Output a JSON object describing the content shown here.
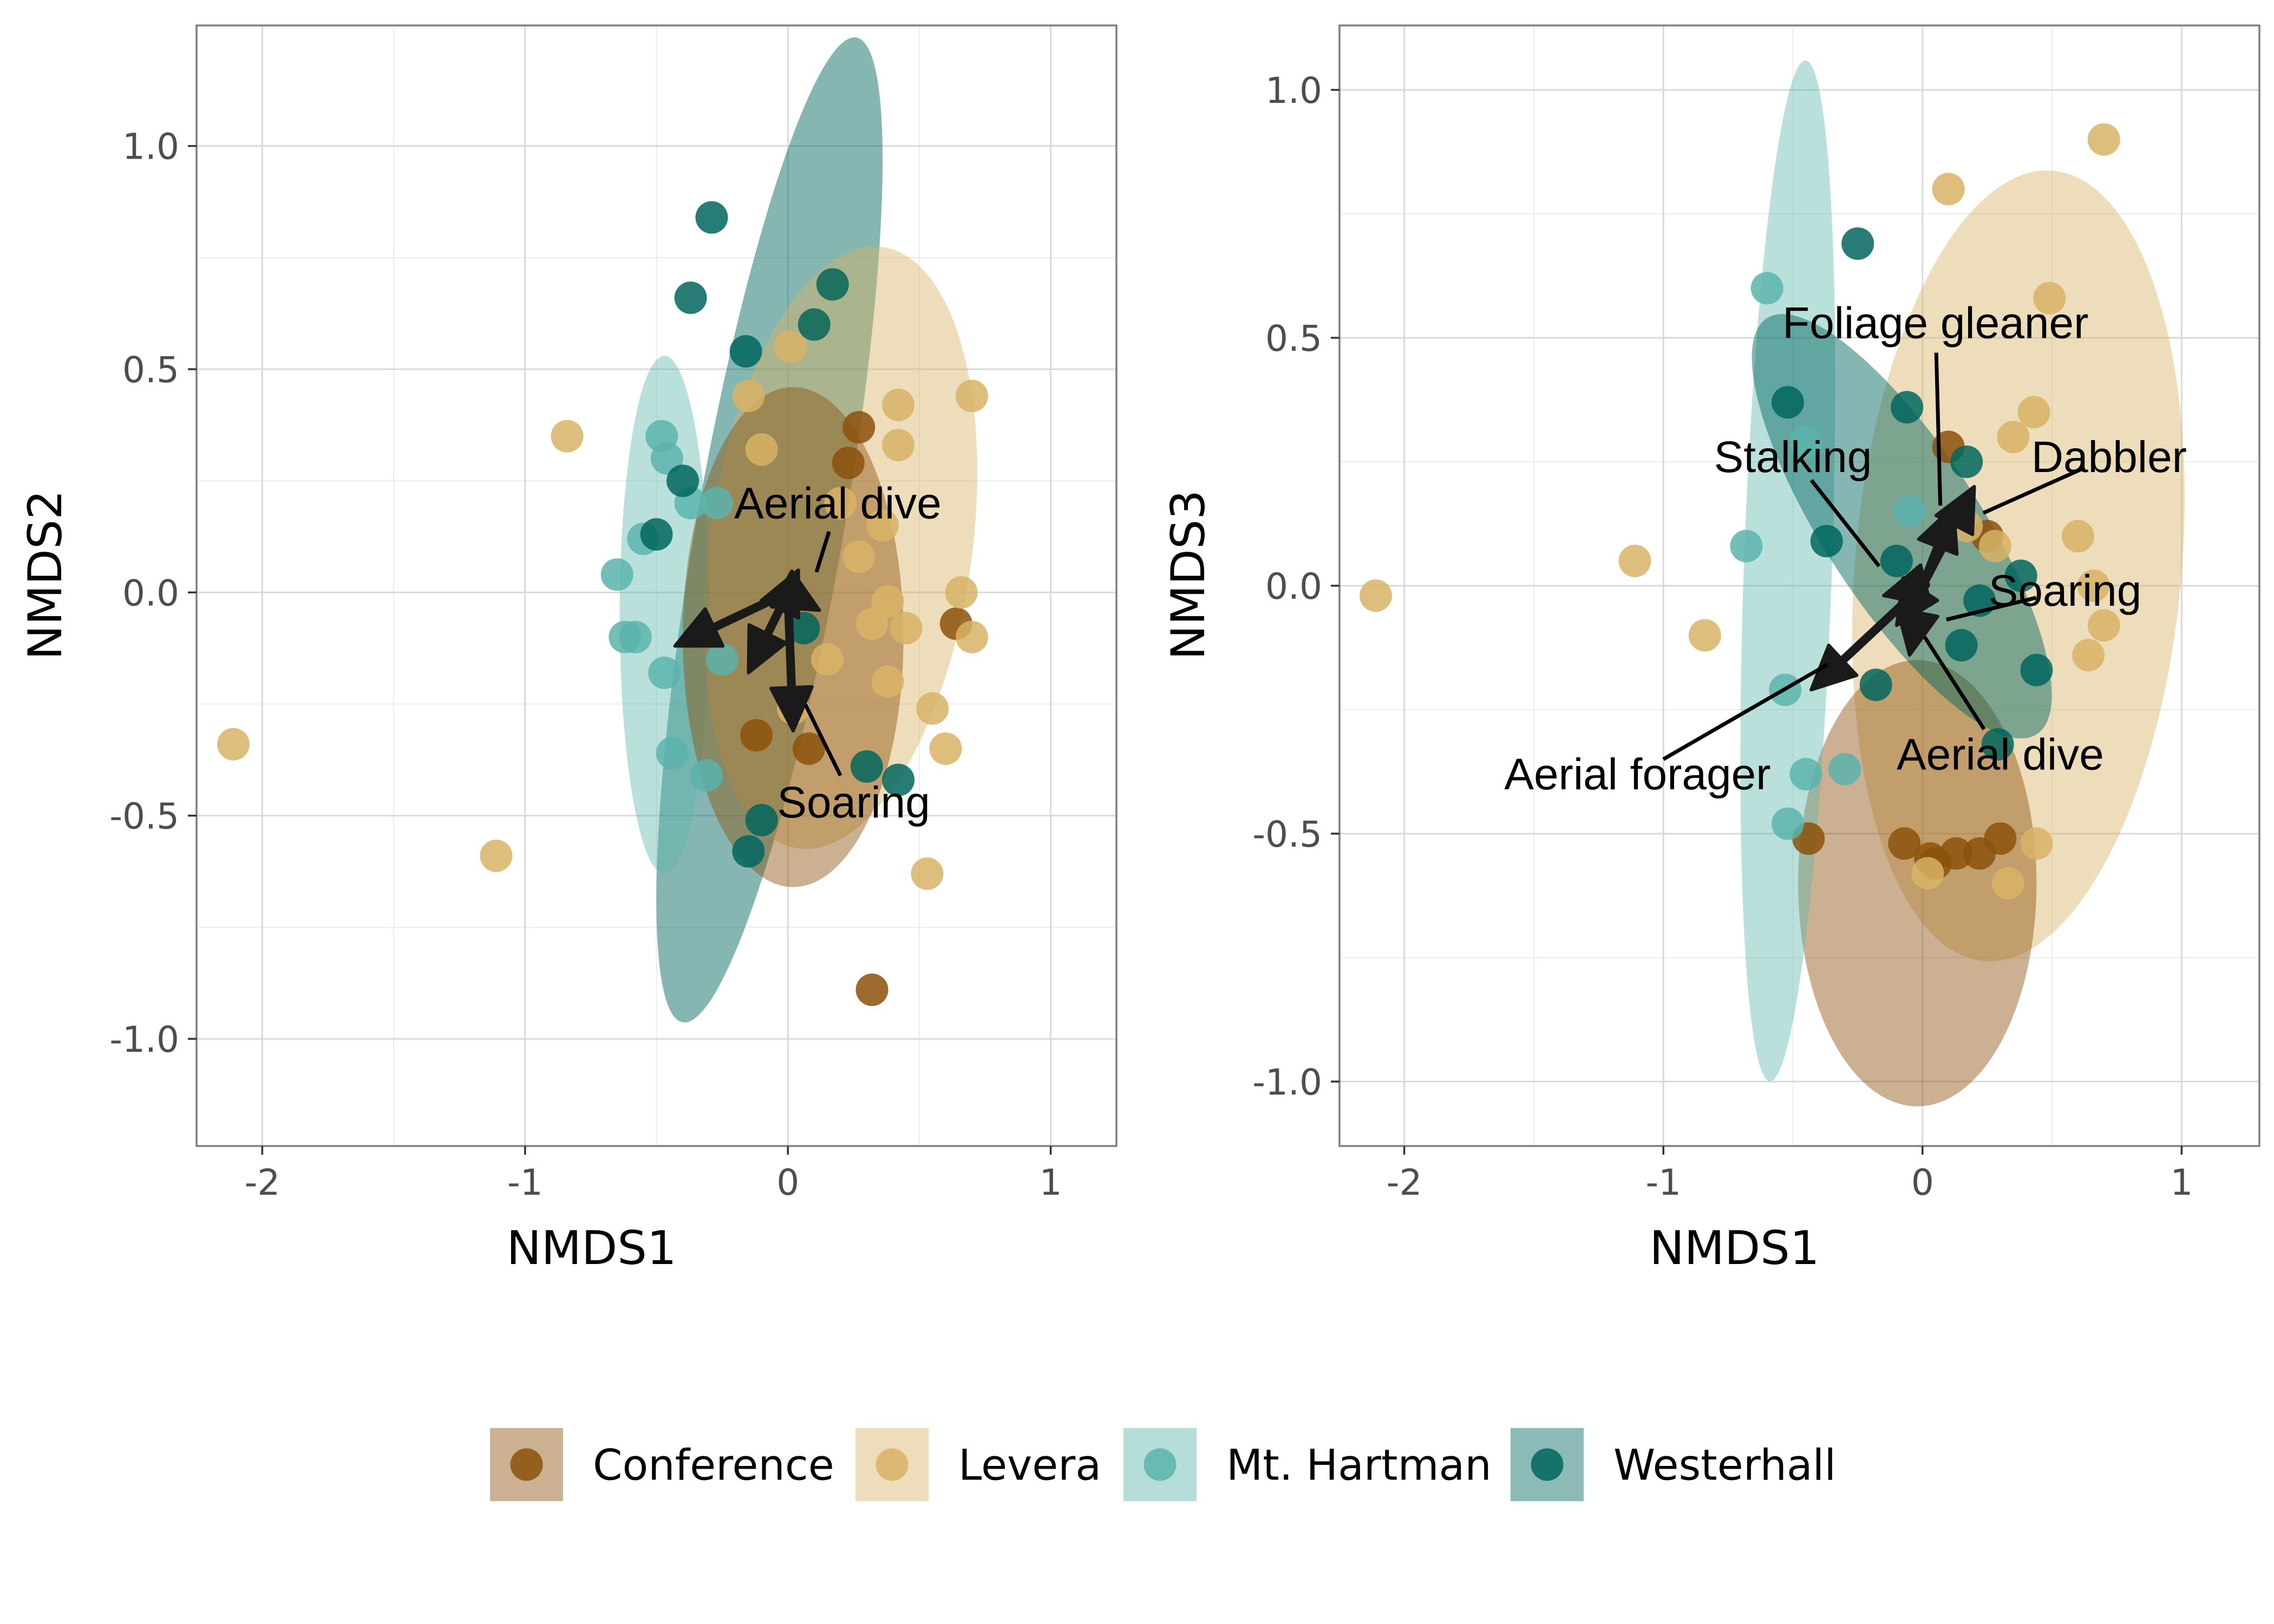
{
  "colors": {
    "Conference": "#8C510A",
    "Levera": "#D8B365",
    "Mt. Hartman": "#5AB4AC",
    "Westerhall": "#01665E",
    "arrow": "#1a1a1a",
    "grid": "#d9d9d9",
    "panel_border": "#7f7f7f"
  },
  "legend": {
    "items": [
      {
        "label": "Conference",
        "color": "#8C510A"
      },
      {
        "label": "Levera",
        "color": "#D8B365"
      },
      {
        "label": "Mt. Hartman",
        "color": "#5AB4AC"
      },
      {
        "label": "Westerhall",
        "color": "#01665E"
      }
    ],
    "placement": "bottom"
  },
  "chart_data": [
    {
      "type": "scatter",
      "xlabel": "NMDS1",
      "ylabel": "NMDS2",
      "xlim": [
        -2.25,
        1.25
      ],
      "ylim": [
        -1.24,
        1.27
      ],
      "xticks": [
        -2,
        -1,
        0,
        1
      ],
      "xtick_labels": [
        "-2",
        "-1",
        "0",
        "1"
      ],
      "yticks": [
        1.0,
        0.5,
        0.0,
        -0.5,
        -1.0
      ],
      "ytick_labels": [
        "1.0",
        "0.5",
        "0.0",
        "-0.5",
        "-1.0"
      ],
      "grid": true,
      "ellipses": [
        {
          "group": "Westerhall",
          "cx": -0.07,
          "cy": 0.14,
          "rx": 0.28,
          "ry": 1.12,
          "angle_deg": 10
        },
        {
          "group": "Levera",
          "cx": 0.2,
          "cy": 0.1,
          "rx": 0.5,
          "ry": 0.68,
          "angle_deg": 8
        },
        {
          "group": "Mt. Hartman",
          "cx": -0.47,
          "cy": -0.05,
          "rx": 0.17,
          "ry": 0.58,
          "angle_deg": 0
        },
        {
          "group": "Conference",
          "cx": 0.02,
          "cy": -0.1,
          "rx": 0.42,
          "ry": 0.56,
          "angle_deg": 0
        }
      ],
      "series": [
        {
          "name": "Conference",
          "points": [
            [
              0.32,
              -0.89
            ],
            [
              0.64,
              -0.07
            ],
            [
              0.27,
              0.37
            ],
            [
              0.08,
              -0.35
            ],
            [
              -0.12,
              -0.32
            ],
            [
              0.23,
              0.29
            ]
          ]
        },
        {
          "name": "Levera",
          "points": [
            [
              -2.11,
              -0.34
            ],
            [
              -1.11,
              -0.59
            ],
            [
              -0.84,
              0.35
            ],
            [
              0.17,
              0.69
            ],
            [
              0.1,
              0.6
            ],
            [
              0.01,
              0.55
            ],
            [
              0.42,
              0.42
            ],
            [
              0.7,
              0.44
            ],
            [
              0.42,
              0.33
            ],
            [
              0.66,
              0.0
            ],
            [
              0.7,
              -0.1
            ],
            [
              0.55,
              -0.26
            ],
            [
              0.6,
              -0.35
            ],
            [
              0.53,
              -0.63
            ],
            [
              0.38,
              -0.2
            ],
            [
              0.45,
              -0.08
            ],
            [
              0.38,
              -0.02
            ],
            [
              0.27,
              0.08
            ],
            [
              0.36,
              0.15
            ],
            [
              0.2,
              0.2
            ],
            [
              0.15,
              -0.15
            ],
            [
              0.32,
              -0.07
            ],
            [
              0.02,
              -0.26
            ],
            [
              -0.15,
              0.44
            ],
            [
              -0.1,
              0.32
            ]
          ]
        },
        {
          "name": "Mt. Hartman",
          "points": [
            [
              -0.48,
              0.35
            ],
            [
              -0.46,
              0.3
            ],
            [
              -0.65,
              0.04
            ],
            [
              -0.58,
              -0.1
            ],
            [
              -0.47,
              -0.18
            ],
            [
              -0.44,
              -0.36
            ],
            [
              -0.31,
              -0.41
            ],
            [
              -0.37,
              0.2
            ],
            [
              -0.27,
              0.2
            ],
            [
              -0.62,
              -0.1
            ],
            [
              -0.55,
              0.12
            ],
            [
              -0.25,
              -0.15
            ]
          ]
        },
        {
          "name": "Westerhall",
          "points": [
            [
              -0.29,
              0.84
            ],
            [
              -0.37,
              0.66
            ],
            [
              0.17,
              0.69
            ],
            [
              -0.16,
              0.54
            ],
            [
              -0.5,
              0.13
            ],
            [
              -0.1,
              -0.51
            ],
            [
              -0.15,
              -0.58
            ],
            [
              0.3,
              -0.39
            ],
            [
              0.42,
              -0.42
            ],
            [
              0.1,
              0.6
            ],
            [
              -0.4,
              0.25
            ],
            [
              0.06,
              -0.08
            ]
          ]
        }
      ],
      "vectors": [
        {
          "label": "Aerial dive",
          "x": 0.12,
          "y": -0.04
        },
        {
          "label": "",
          "x": -0.43,
          "y": -0.12
        },
        {
          "label": "Soaring",
          "x": 0.02,
          "y": -0.31
        },
        {
          "label": "",
          "x": -0.15,
          "y": -0.18
        },
        {
          "label": "",
          "x": 0.04,
          "y": 0.05
        }
      ],
      "vector_labels": [
        {
          "text": "Aerial dive",
          "x": 0.19,
          "y": 0.2
        },
        {
          "text": "Soaring",
          "x": 0.25,
          "y": -0.47
        }
      ]
    },
    {
      "type": "scatter",
      "xlabel": "NMDS1",
      "ylabel": "NMDS3",
      "xlim": [
        -2.25,
        1.3
      ],
      "ylim": [
        -1.13,
        1.13
      ],
      "xticks": [
        -2,
        -1,
        0,
        1
      ],
      "xtick_labels": [
        "-2",
        "-1",
        "0",
        "1"
      ],
      "yticks": [
        1.0,
        0.5,
        0.0,
        -0.5,
        -1.0
      ],
      "ytick_labels": [
        "1.0",
        "0.5",
        "0.0",
        "-0.5",
        "-1.0"
      ],
      "grid": true,
      "ellipses": [
        {
          "group": "Levera",
          "cx": 0.37,
          "cy": 0.04,
          "rx": 0.63,
          "ry": 0.8,
          "angle_deg": 5
        },
        {
          "group": "Conference",
          "cx": -0.02,
          "cy": -0.6,
          "rx": 0.46,
          "ry": 0.45,
          "angle_deg": 0
        },
        {
          "group": "Mt. Hartman",
          "cx": -0.52,
          "cy": 0.03,
          "rx": 0.17,
          "ry": 1.03,
          "angle_deg": 2
        },
        {
          "group": "Westerhall",
          "cx": -0.08,
          "cy": 0.12,
          "rx": 0.3,
          "ry": 0.5,
          "angle_deg": -33
        }
      ],
      "series": [
        {
          "name": "Conference",
          "points": [
            [
              -0.07,
              -0.52
            ],
            [
              0.03,
              -0.55
            ],
            [
              0.05,
              -0.56
            ],
            [
              0.13,
              -0.54
            ],
            [
              0.22,
              -0.54
            ],
            [
              0.3,
              -0.51
            ],
            [
              -0.44,
              -0.51
            ],
            [
              0.1,
              0.28
            ],
            [
              0.25,
              0.1
            ]
          ]
        },
        {
          "name": "Levera",
          "points": [
            [
              -2.11,
              -0.02
            ],
            [
              -1.11,
              0.05
            ],
            [
              -0.84,
              -0.1
            ],
            [
              0.7,
              0.9
            ],
            [
              0.1,
              0.8
            ],
            [
              0.49,
              0.58
            ],
            [
              0.43,
              0.35
            ],
            [
              0.6,
              0.1
            ],
            [
              0.66,
              0.0
            ],
            [
              0.7,
              -0.08
            ],
            [
              0.64,
              -0.14
            ],
            [
              0.44,
              -0.52
            ],
            [
              0.02,
              -0.58
            ],
            [
              0.33,
              -0.6
            ],
            [
              0.17,
              0.12
            ],
            [
              0.35,
              0.3
            ],
            [
              0.28,
              0.08
            ]
          ]
        },
        {
          "name": "Mt. Hartman",
          "points": [
            [
              -0.6,
              0.6
            ],
            [
              -0.68,
              0.08
            ],
            [
              -0.45,
              0.29
            ],
            [
              -0.53,
              -0.21
            ],
            [
              -0.45,
              -0.38
            ],
            [
              -0.3,
              -0.37
            ],
            [
              -0.52,
              -0.48
            ],
            [
              -0.05,
              0.15
            ]
          ]
        },
        {
          "name": "Westerhall",
          "points": [
            [
              -0.25,
              0.69
            ],
            [
              -0.52,
              0.37
            ],
            [
              -0.06,
              0.36
            ],
            [
              -0.37,
              0.09
            ],
            [
              0.38,
              0.02
            ],
            [
              0.44,
              -0.17
            ],
            [
              0.29,
              -0.32
            ],
            [
              -0.18,
              -0.2
            ],
            [
              0.15,
              -0.12
            ],
            [
              -0.1,
              0.05
            ],
            [
              0.17,
              0.25
            ],
            [
              0.22,
              -0.03
            ]
          ]
        }
      ],
      "vectors": [
        {
          "label": "Foliage gleaner",
          "x": 0.12,
          "y": 0.16
        },
        {
          "label": "Dabbler",
          "x": 0.2,
          "y": 0.2
        },
        {
          "label": "Stalking",
          "x": -0.15,
          "y": -0.02
        },
        {
          "label": "Soaring",
          "x": -0.05,
          "y": -0.14
        },
        {
          "label": "Aerial forager",
          "x": -0.43,
          "y": -0.21
        },
        {
          "label": "Aerial dive",
          "x": -0.1,
          "y": -0.08
        }
      ],
      "vector_labels": [
        {
          "text": "Foliage gleaner",
          "x": 0.05,
          "y": 0.53
        },
        {
          "text": "Stalking",
          "x": -0.5,
          "y": 0.26
        },
        {
          "text": "Dabbler",
          "x": 0.72,
          "y": 0.26
        },
        {
          "text": "Soaring",
          "x": 0.55,
          "y": -0.01
        },
        {
          "text": "Aerial forager",
          "x": -1.1,
          "y": -0.38
        },
        {
          "text": "Aerial dive",
          "x": 0.3,
          "y": -0.34
        }
      ]
    }
  ]
}
